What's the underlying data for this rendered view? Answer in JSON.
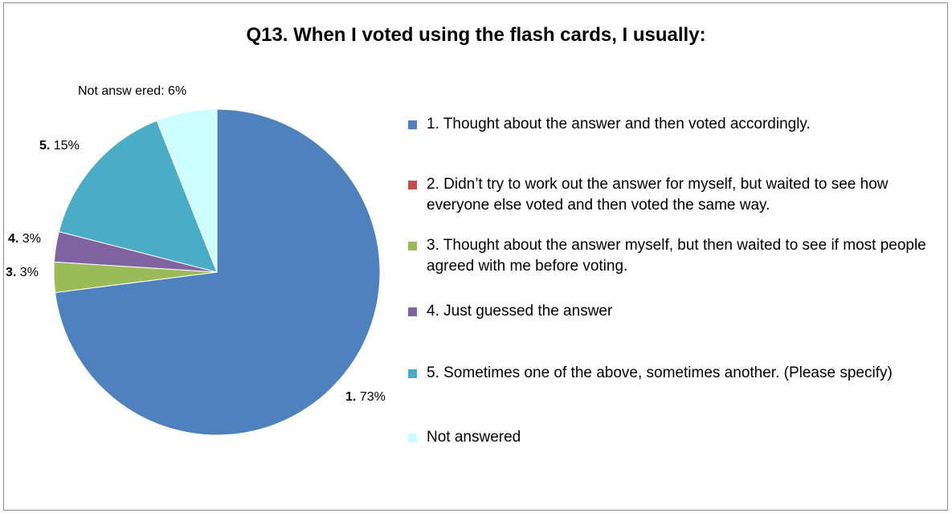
{
  "chart_data": {
    "type": "pie",
    "title": "Q13. When I voted using the flash cards, I usually:",
    "slices": [
      {
        "id": "1",
        "legend": "1. Thought about the answer and then voted accordingly.",
        "value": 73,
        "label_num": "1.",
        "label_pct": "73%",
        "color": "#4f81bd"
      },
      {
        "id": "2",
        "legend": "2. Didn’t try to work out the answer for myself, but waited to see how everyone else voted and then voted the same way.",
        "value": 0,
        "label_num": "",
        "label_pct": "",
        "color": "#c0504d"
      },
      {
        "id": "3",
        "legend": "3. Thought about the answer myself, but then waited to see if most people agreed with me before voting.",
        "value": 3,
        "label_num": "3.",
        "label_pct": "3%",
        "color": "#9bbb59"
      },
      {
        "id": "4",
        "legend": "4. Just guessed the answer",
        "value": 3,
        "label_num": "4.",
        "label_pct": "3%",
        "color": "#8064a2"
      },
      {
        "id": "5",
        "legend": "5. Sometimes one of the above, sometimes another. (Please specify)",
        "value": 15,
        "label_num": "5.",
        "label_pct": "15%",
        "color": "#4bacc6"
      },
      {
        "id": "na",
        "legend": "Not answered",
        "value": 6,
        "label_num": "",
        "label_pct": "Not answ ered: 6%",
        "color": "#ccffff"
      }
    ],
    "legend_position": "right"
  }
}
